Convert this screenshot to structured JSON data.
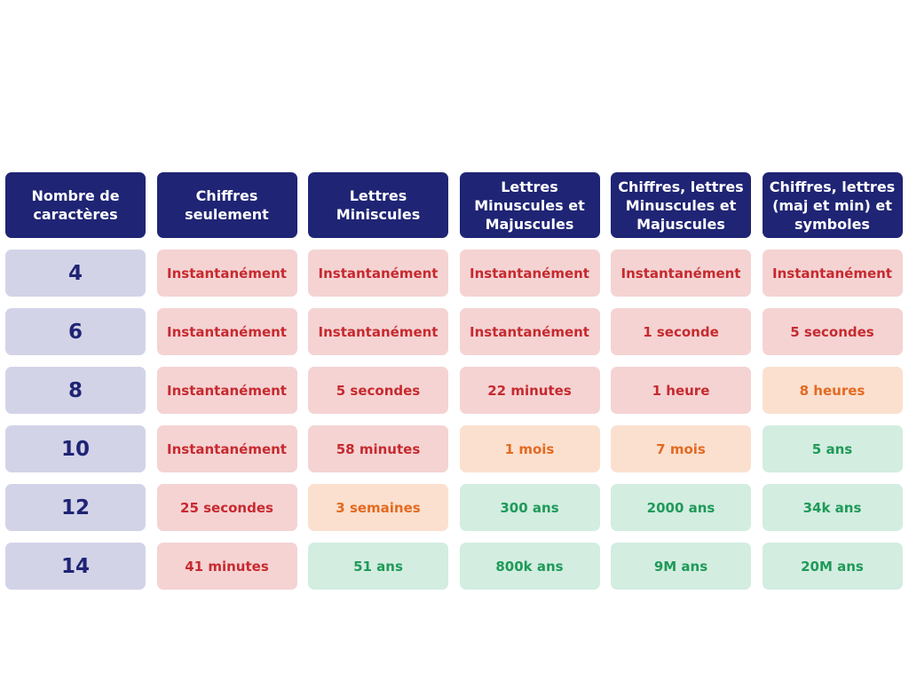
{
  "table": {
    "headers": [
      "Nombre de\ncaractères",
      "Chiffres\nseulement",
      "Lettres\nMiniscules",
      "Lettres\nMinuscules et\nMajuscules",
      "Chiffres, lettres\nMinuscules et\nMajuscules",
      "Chiffres, lettres\n(maj et min) et\nsymboles"
    ],
    "rows": [
      {
        "chars": "4",
        "cells": [
          "Instantanément",
          "Instantanément",
          "Instantanément",
          "Instantanément",
          "Instantanément"
        ]
      },
      {
        "chars": "6",
        "cells": [
          "Instantanément",
          "Instantanément",
          "Instantanément",
          "1 seconde",
          "5 secondes"
        ]
      },
      {
        "chars": "8",
        "cells": [
          "Instantanément",
          "5 secondes",
          "22 minutes",
          "1 heure",
          "8 heures"
        ]
      },
      {
        "chars": "10",
        "cells": [
          "Instantanément",
          "58 minutes",
          "1 mois",
          "7 mois",
          "5 ans"
        ]
      },
      {
        "chars": "12",
        "cells": [
          "25 secondes",
          "3 semaines",
          "300 ans",
          "2000 ans",
          "34k ans"
        ]
      },
      {
        "chars": "14",
        "cells": [
          "41 minutes",
          "51 ans",
          "800k ans",
          "9M ans",
          "20M ans"
        ]
      }
    ],
    "levels": [
      [
        "red",
        "red",
        "red",
        "red",
        "red"
      ],
      [
        "red",
        "red",
        "red",
        "red",
        "red"
      ],
      [
        "red",
        "red",
        "red",
        "red",
        "orange"
      ],
      [
        "red",
        "red",
        "orange",
        "orange",
        "green"
      ],
      [
        "red",
        "orange",
        "green",
        "green",
        "green"
      ],
      [
        "red",
        "green",
        "green",
        "green",
        "green"
      ]
    ],
    "colors": {
      "header_bg": "#1f2474",
      "count_bg": "#d3d3e8",
      "red_bg": "#f5d3d3",
      "red_text": "#c62a2f",
      "orange_bg": "#fbe0cf",
      "orange_text": "#e36a21",
      "green_bg": "#d3ede1",
      "green_text": "#1f9a58"
    }
  }
}
